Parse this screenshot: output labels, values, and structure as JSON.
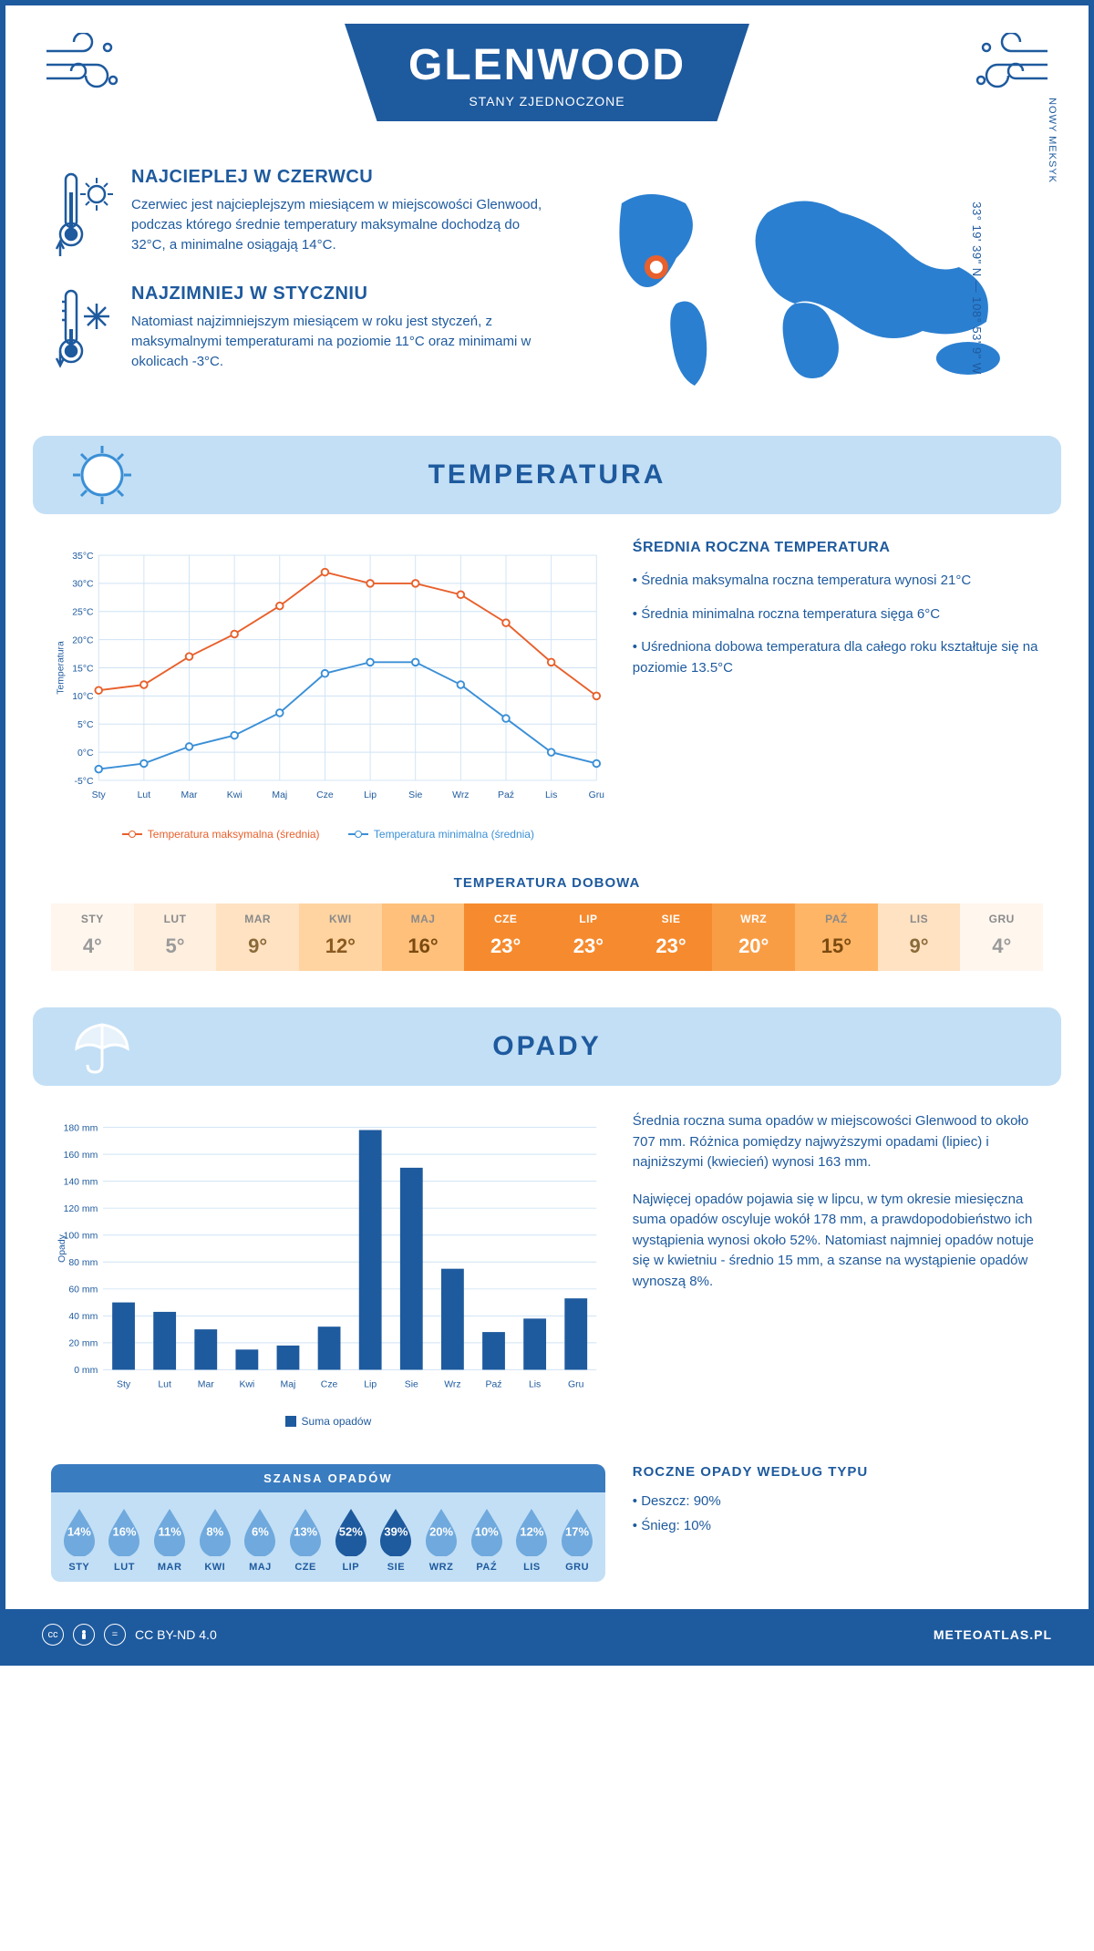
{
  "header": {
    "title": "GLENWOOD",
    "subtitle": "STANY ZJEDNOCZONE"
  },
  "coords": {
    "text": "33° 19' 39\" N — 108° 53' 9\" W",
    "region": "NOWY MEKSYK"
  },
  "facts": {
    "hot": {
      "title": "NAJCIEPLEJ W CZERWCU",
      "text": "Czerwiec jest najcieplejszym miesiącem w miejscowości Glenwood, podczas którego średnie temperatury maksymalne dochodzą do 32°C, a minimalne osiągają 14°C."
    },
    "cold": {
      "title": "NAJZIMNIEJ W STYCZNIU",
      "text": "Natomiast najzimniejszym miesiącem w roku jest styczeń, z maksymalnymi temperaturami na poziomie 11°C oraz minimami w okolicach -3°C."
    }
  },
  "sections": {
    "temp": "TEMPERATURA",
    "opady": "OPADY"
  },
  "months": [
    "Sty",
    "Lut",
    "Mar",
    "Kwi",
    "Maj",
    "Cze",
    "Lip",
    "Sie",
    "Wrz",
    "Paź",
    "Lis",
    "Gru"
  ],
  "months_upper": [
    "STY",
    "LUT",
    "MAR",
    "KWI",
    "MAJ",
    "CZE",
    "LIP",
    "SIE",
    "WRZ",
    "PAŹ",
    "LIS",
    "GRU"
  ],
  "temp_chart": {
    "type": "line",
    "ylabel": "Temperatura",
    "y_ticks": [
      -5,
      0,
      5,
      10,
      15,
      20,
      25,
      30,
      35
    ],
    "y_tick_labels": [
      "-5°C",
      "0°C",
      "5°C",
      "10°C",
      "15°C",
      "20°C",
      "25°C",
      "30°C",
      "35°C"
    ],
    "series": {
      "max": {
        "label": "Temperatura maksymalna (średnia)",
        "color": "#e8602c",
        "values": [
          11,
          12,
          17,
          21,
          26,
          32,
          30,
          30,
          28,
          23,
          16,
          10
        ]
      },
      "min": {
        "label": "Temperatura minimalna (średnia)",
        "color": "#3a8fd6",
        "values": [
          -3,
          -2,
          1,
          3,
          7,
          14,
          16,
          16,
          12,
          6,
          0,
          -2
        ]
      }
    },
    "grid_color": "#cfe3f4",
    "bg": "#ffffff",
    "label_fontsize": 11
  },
  "temp_text": {
    "title": "ŚREDNIA ROCZNA TEMPERATURA",
    "p1": "• Średnia maksymalna roczna temperatura wynosi 21°C",
    "p2": "• Średnia minimalna roczna temperatura sięga 6°C",
    "p3": "• Uśredniona dobowa temperatura dla całego roku kształtuje się na poziomie 13.5°C"
  },
  "dobowa": {
    "title": "TEMPERATURA DOBOWA",
    "values": [
      "4°",
      "5°",
      "9°",
      "12°",
      "16°",
      "23°",
      "23°",
      "23°",
      "20°",
      "15°",
      "9°",
      "4°"
    ],
    "bg_colors": [
      "#fff6ee",
      "#ffefdf",
      "#ffe2c2",
      "#ffd4a1",
      "#ffc07b",
      "#f68a2e",
      "#f68a2e",
      "#f68a2e",
      "#f99d45",
      "#ffb566",
      "#ffe2c2",
      "#fff6ee"
    ],
    "text_colors": [
      "#9a9a9a",
      "#9a9a9a",
      "#8b6a3a",
      "#8b5a20",
      "#7a4a10",
      "#ffffff",
      "#ffffff",
      "#ffffff",
      "#ffffff",
      "#7a4a10",
      "#8b6a3a",
      "#9a9a9a"
    ]
  },
  "opady_chart": {
    "type": "bar",
    "ylabel": "Opady",
    "y_ticks": [
      0,
      20,
      40,
      60,
      80,
      100,
      120,
      140,
      160,
      180
    ],
    "y_tick_labels": [
      "0 mm",
      "20 mm",
      "40 mm",
      "60 mm",
      "80 mm",
      "100 mm",
      "120 mm",
      "140 mm",
      "160 mm",
      "180 mm"
    ],
    "values": [
      50,
      43,
      30,
      15,
      18,
      32,
      178,
      150,
      75,
      28,
      38,
      53
    ],
    "bar_color": "#1e5a9e",
    "grid_color": "#cfe3f4",
    "legend": "Suma opadów"
  },
  "opady_text": {
    "p1": "Średnia roczna suma opadów w miejscowości Glenwood to około 707 mm. Różnica pomiędzy najwyższymi opadami (lipiec) i najniższymi (kwiecień) wynosi 163 mm.",
    "p2": "Najwięcej opadów pojawia się w lipcu, w tym okresie miesięczna suma opadów oscyluje wokół 178 mm, a prawdopodobieństwo ich wystąpienia wynosi około 52%. Natomiast najmniej opadów notuje się w kwietniu - średnio 15 mm, a szanse na wystąpienie opadów wynoszą 8%."
  },
  "szansa": {
    "title": "SZANSA OPADÓW",
    "values": [
      14,
      16,
      11,
      8,
      6,
      13,
      52,
      39,
      20,
      10,
      12,
      17
    ],
    "drop_light": "#6fa9dd",
    "drop_dark": "#1e5a9e",
    "dark_threshold": 30
  },
  "roczne_typ": {
    "title": "ROCZNE OPADY WEDŁUG TYPU",
    "l1": "• Deszcz: 90%",
    "l2": "• Śnieg: 10%"
  },
  "footer": {
    "license": "CC BY-ND 4.0",
    "site": "METEOATLAS.PL"
  },
  "colors": {
    "primary": "#1e5a9e",
    "banner_bg": "#c3dff5"
  }
}
